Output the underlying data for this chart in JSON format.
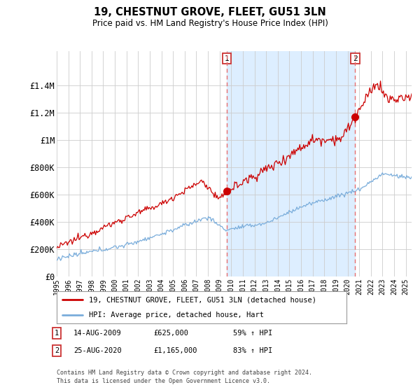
{
  "title": "19, CHESTNUT GROVE, FLEET, GU51 3LN",
  "subtitle": "Price paid vs. HM Land Registry's House Price Index (HPI)",
  "hpi_label": "HPI: Average price, detached house, Hart",
  "property_label": "19, CHESTNUT GROVE, FLEET, GU51 3LN (detached house)",
  "transaction1_date": "14-AUG-2009",
  "transaction1_price": 625000,
  "transaction1_pct": "59% ↑ HPI",
  "transaction2_date": "25-AUG-2020",
  "transaction2_price": 1165000,
  "transaction2_pct": "83% ↑ HPI",
  "vline1_x": 2009.62,
  "vline2_x": 2020.65,
  "ylim": [
    0,
    1650000
  ],
  "xlim_start": 1995.0,
  "xlim_end": 2025.5,
  "footnote": "Contains HM Land Registry data © Crown copyright and database right 2024.\nThis data is licensed under the Open Government Licence v3.0.",
  "property_color": "#cc0000",
  "hpi_color": "#7aaddb",
  "vline_color": "#e87070",
  "shaded_color": "#ddeeff",
  "background_color": "#ffffff",
  "grid_color": "#cccccc"
}
